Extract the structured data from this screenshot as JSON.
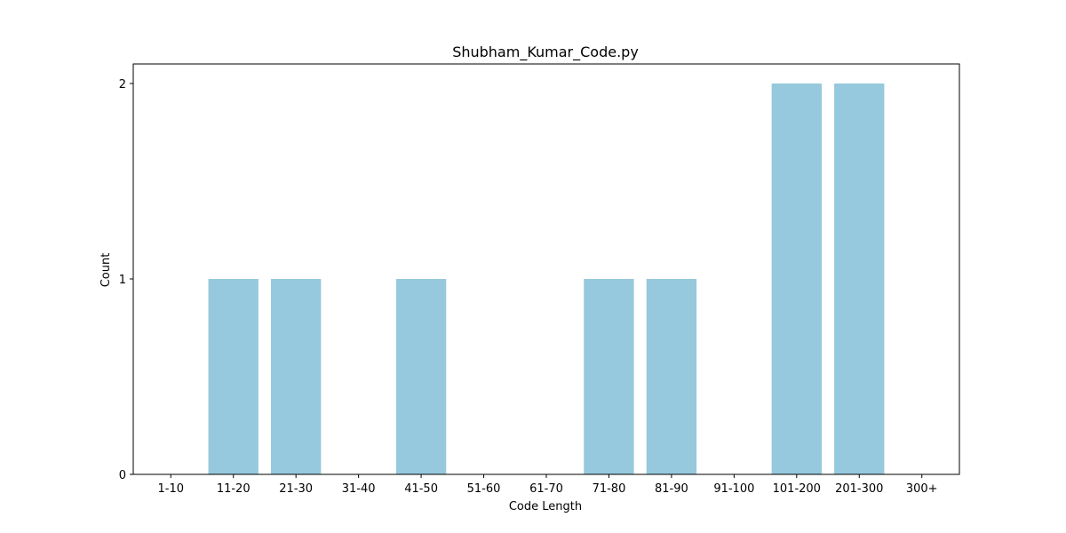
{
  "chart_data": {
    "type": "bar",
    "title": "Shubham_Kumar_Code.py",
    "xlabel": "Code Length",
    "ylabel": "Count",
    "categories": [
      "1-10",
      "11-20",
      "21-30",
      "31-40",
      "41-50",
      "51-60",
      "61-70",
      "71-80",
      "81-90",
      "91-100",
      "101-200",
      "201-300",
      "300+"
    ],
    "values": [
      0,
      1,
      1,
      0,
      1,
      0,
      0,
      1,
      1,
      0,
      2,
      2,
      0
    ],
    "ylim": [
      0,
      2.1
    ],
    "yticks": [
      0,
      1,
      2
    ],
    "grid": false,
    "bar_color": "#96c9dd"
  }
}
